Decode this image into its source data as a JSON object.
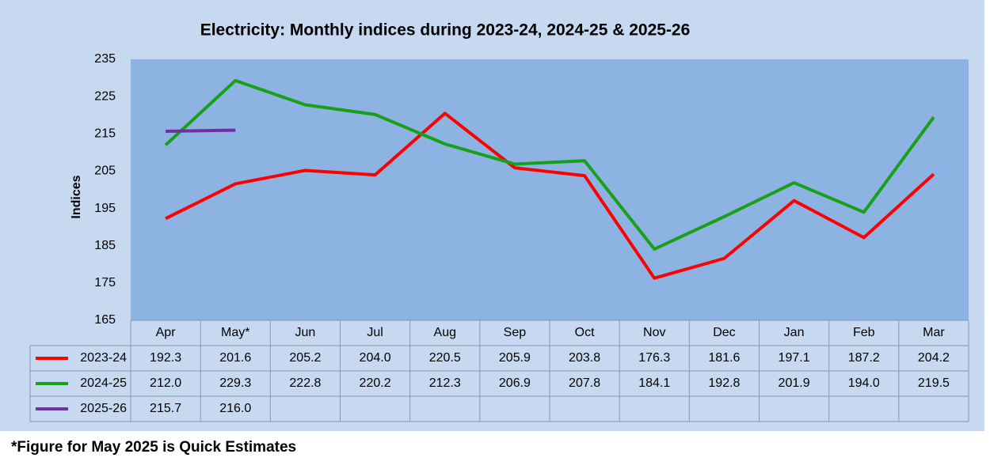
{
  "chart_data": {
    "type": "line",
    "title": "Electricity: Monthly indices during 2023-24, 2024-25 & 2025-26",
    "ylabel": "Indices",
    "categories": [
      "Apr",
      "May*",
      "Jun",
      "Jul",
      "Aug",
      "Sep",
      "Oct",
      "Nov",
      "Dec",
      "Jan",
      "Feb",
      "Mar"
    ],
    "series": [
      {
        "name": "2023-24",
        "color": "#ff0000",
        "values": [
          192.3,
          201.6,
          205.2,
          204.0,
          220.5,
          205.9,
          203.8,
          176.3,
          181.6,
          197.1,
          187.2,
          204.2
        ],
        "value_labels": [
          "192.3",
          "201.6",
          "205.2",
          "204.0",
          "220.5",
          "205.9",
          "203.8",
          "176.3",
          "181.6",
          "197.1",
          "187.2",
          "204.2"
        ]
      },
      {
        "name": "2024-25",
        "color": "#18a018",
        "values": [
          212.0,
          229.3,
          222.8,
          220.2,
          212.3,
          206.9,
          207.8,
          184.1,
          192.8,
          201.9,
          194.0,
          219.5
        ],
        "value_labels": [
          "212.0",
          "229.3",
          "222.8",
          "220.2",
          "212.3",
          "206.9",
          "207.8",
          "184.1",
          "192.8",
          "201.9",
          "194.0",
          "219.5"
        ]
      },
      {
        "name": "2025-26",
        "color": "#7030a0",
        "values": [
          215.7,
          216.0,
          null,
          null,
          null,
          null,
          null,
          null,
          null,
          null,
          null,
          null
        ],
        "value_labels": [
          "215.7",
          "216.0",
          null,
          null,
          null,
          null,
          null,
          null,
          null,
          null,
          null,
          null
        ]
      }
    ],
    "ylim": [
      165,
      235
    ],
    "yticks": [
      165,
      175,
      185,
      195,
      205,
      215,
      225,
      235
    ],
    "grid": false,
    "footnote": "*Figure for May 2025 is Quick Estimates"
  }
}
